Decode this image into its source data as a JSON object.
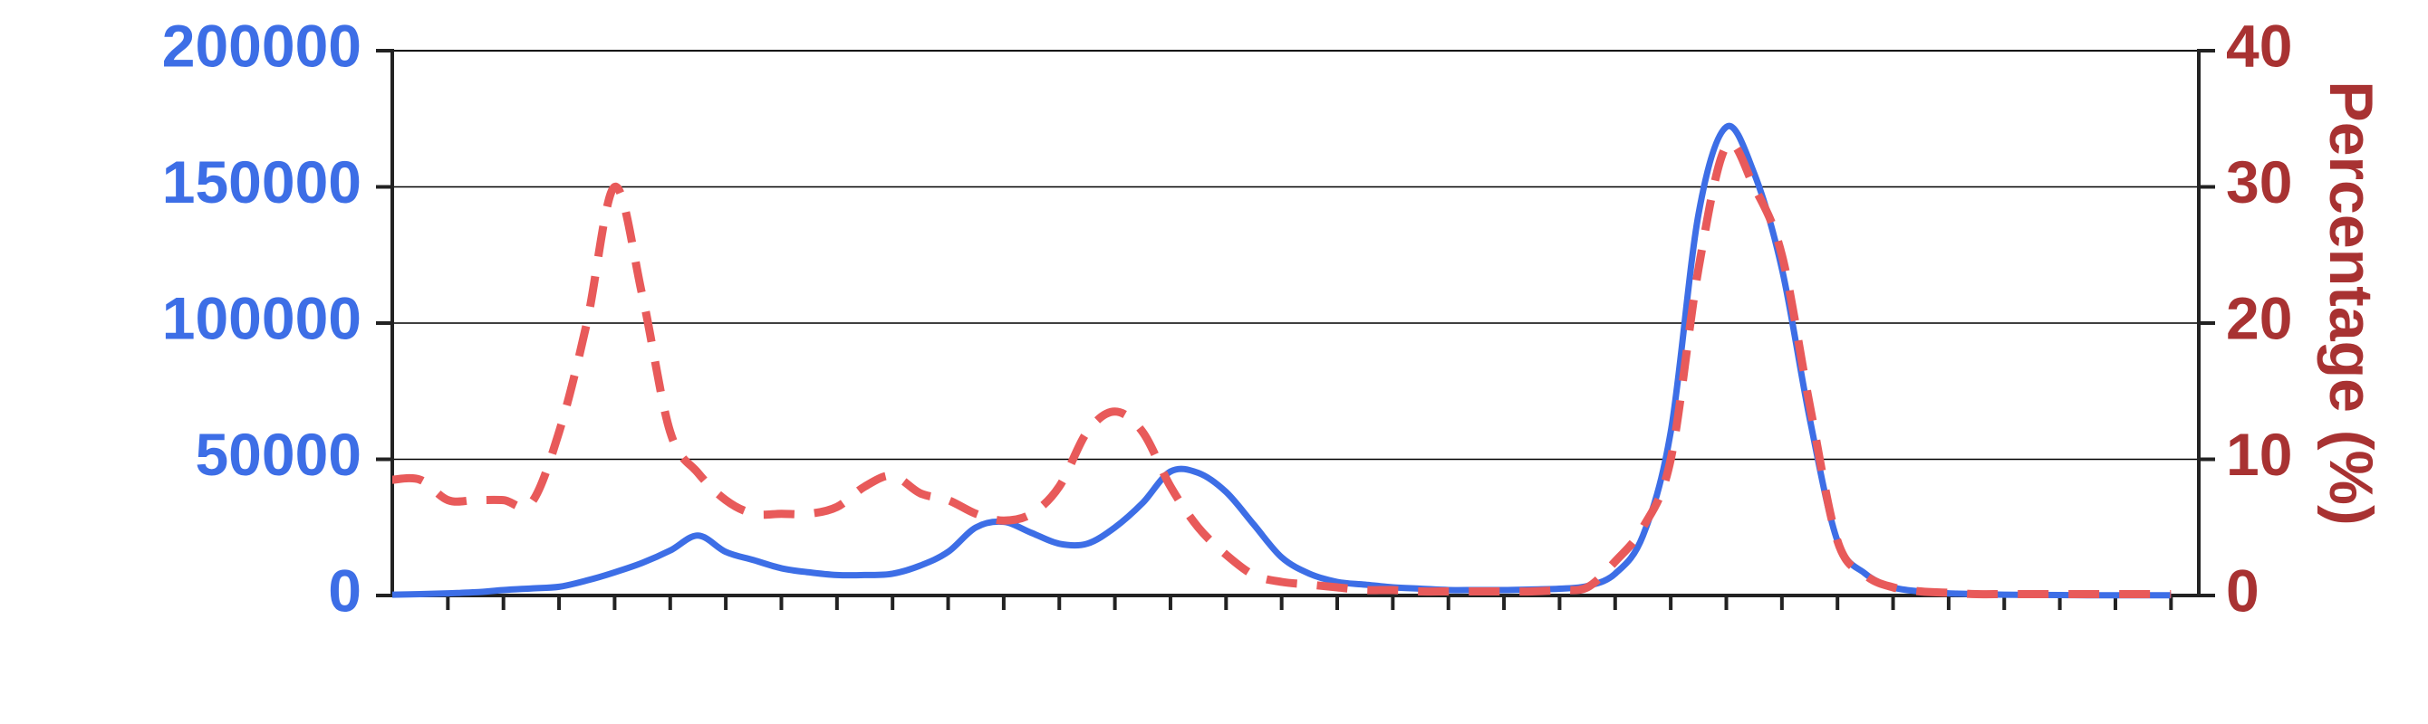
{
  "chart_data": {
    "type": "line",
    "title": "",
    "xlabel": "",
    "ylabel_left": "",
    "ylabel_right": "Percentage (%)",
    "x": [
      0,
      1,
      2,
      3,
      4,
      5,
      6,
      7,
      8,
      9,
      10,
      11,
      12,
      13,
      14,
      15,
      16,
      17,
      18,
      19,
      20,
      21,
      22,
      23,
      24,
      25,
      26,
      27,
      28,
      29,
      30,
      31,
      32,
      33,
      34,
      35,
      36,
      37,
      38,
      39,
      40,
      41,
      42,
      43,
      44,
      45,
      46,
      47,
      48,
      49,
      50,
      51,
      52,
      53,
      54,
      55,
      56,
      57,
      58,
      59,
      60,
      61,
      62,
      63,
      64
    ],
    "xlim": [
      0,
      65
    ],
    "x_tick_count": 32,
    "ylim_left": [
      0,
      200000
    ],
    "yticks_left": [
      "0",
      "50000",
      "100000",
      "150000",
      "200000"
    ],
    "ylim_right": [
      0,
      40
    ],
    "yticks_right": [
      "0",
      "10",
      "20",
      "30",
      "40"
    ],
    "grid": true,
    "colors": {
      "left_axis": "#3d6ee6",
      "right_axis": "#a83232",
      "series_counts": "#3d6ee6",
      "series_percent": "#e85a5a"
    },
    "series": [
      {
        "axis": "left",
        "style": "solid",
        "values": [
          300,
          500,
          800,
          1200,
          2000,
          2600,
          3200,
          5500,
          8500,
          12000,
          16500,
          22000,
          16000,
          13000,
          10000,
          8500,
          7500,
          7500,
          8000,
          11000,
          16000,
          25000,
          27000,
          23000,
          19000,
          19000,
          25000,
          34000,
          45500,
          45000,
          38000,
          26000,
          14000,
          8000,
          5000,
          4000,
          3000,
          2500,
          2000,
          2000,
          2000,
          2200,
          2500,
          3500,
          8000,
          22000,
          60000,
          140000,
          172000,
          155000,
          120000,
          65000,
          20000,
          8000,
          3000,
          1500,
          800,
          500,
          300,
          200,
          150,
          100,
          100,
          100,
          100
        ]
      },
      {
        "axis": "right",
        "style": "dashed",
        "values": [
          8.5,
          8.5,
          7,
          7,
          7,
          6.8,
          12,
          20,
          30,
          22,
          12,
          9,
          7,
          6,
          6,
          6,
          6.5,
          8,
          8.8,
          7.5,
          7,
          6,
          5.5,
          6,
          8,
          12,
          13.5,
          12,
          8,
          5,
          3,
          1.5,
          1,
          0.8,
          0.6,
          0.4,
          0.4,
          0.3,
          0.3,
          0.3,
          0.3,
          0.3,
          0.4,
          0.6,
          2.5,
          5,
          10,
          24,
          33,
          30,
          25,
          14,
          4,
          1.5,
          0.6,
          0.3,
          0.2,
          0.1,
          0.1,
          0.1,
          0.1,
          0.1,
          0.1,
          0.1,
          0.1
        ]
      }
    ]
  }
}
